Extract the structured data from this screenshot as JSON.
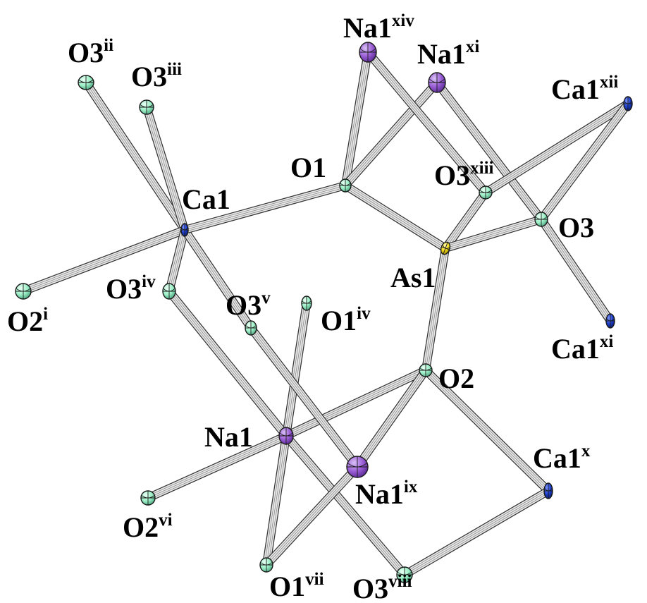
{
  "atom_colors": {
    "Na": "#9b5fd6",
    "Ca": "#1e3fd0",
    "O": "#9ef0c8",
    "As": "#f2dc1e"
  },
  "atoms": [
    {
      "id": "Ca1",
      "element": "Ca",
      "label": "Ca1",
      "sup": ""
    },
    {
      "id": "As1",
      "element": "As",
      "label": "As1",
      "sup": ""
    },
    {
      "id": "O1",
      "element": "O",
      "label": "O1",
      "sup": ""
    },
    {
      "id": "O2",
      "element": "O",
      "label": "O2",
      "sup": ""
    },
    {
      "id": "O3",
      "element": "O",
      "label": "O3",
      "sup": ""
    },
    {
      "id": "Na1",
      "element": "Na",
      "label": "Na1",
      "sup": ""
    },
    {
      "id": "O3ii",
      "element": "O",
      "label": "O3",
      "sup": "ii"
    },
    {
      "id": "O3iii",
      "element": "O",
      "label": "O3",
      "sup": "iii"
    },
    {
      "id": "O2i",
      "element": "O",
      "label": "O2",
      "sup": "i"
    },
    {
      "id": "O3iv",
      "element": "O",
      "label": "O3",
      "sup": "iv"
    },
    {
      "id": "O3v",
      "element": "O",
      "label": "O3",
      "sup": "v"
    },
    {
      "id": "O1iv",
      "element": "O",
      "label": "O1",
      "sup": "iv"
    },
    {
      "id": "Na1xiv",
      "element": "Na",
      "label": "Na1",
      "sup": "xiv"
    },
    {
      "id": "Na1xi",
      "element": "Na",
      "label": "Na1",
      "sup": "xi"
    },
    {
      "id": "Ca1xii",
      "element": "Ca",
      "label": "Ca1",
      "sup": "xii"
    },
    {
      "id": "O3xiii",
      "element": "O",
      "label": "O3",
      "sup": "xiii"
    },
    {
      "id": "Ca1xi",
      "element": "Ca",
      "label": "Ca1",
      "sup": "xi"
    },
    {
      "id": "Ca1x",
      "element": "Ca",
      "label": "Ca1",
      "sup": "x"
    },
    {
      "id": "Na1ix",
      "element": "Na",
      "label": "Na1",
      "sup": "ix"
    },
    {
      "id": "O2vi",
      "element": "O",
      "label": "O2",
      "sup": "vi"
    },
    {
      "id": "O1vii",
      "element": "O",
      "label": "O1",
      "sup": "vii"
    },
    {
      "id": "O3viii",
      "element": "O",
      "label": "O3",
      "sup": "viii"
    }
  ],
  "bonds": [
    [
      "Ca1",
      "O3ii"
    ],
    [
      "Ca1",
      "O3iii"
    ],
    [
      "Ca1",
      "O2i"
    ],
    [
      "Ca1",
      "O3iv"
    ],
    [
      "Ca1",
      "O3v"
    ],
    [
      "Ca1",
      "O1"
    ],
    [
      "O1",
      "Na1xiv"
    ],
    [
      "O1",
      "Na1xi"
    ],
    [
      "O1",
      "As1"
    ],
    [
      "As1",
      "O3xiii"
    ],
    [
      "As1",
      "O3"
    ],
    [
      "As1",
      "O2"
    ],
    [
      "Na1xiv",
      "O3xiii"
    ],
    [
      "Na1xi",
      "O3"
    ],
    [
      "Ca1xii",
      "O3xiii"
    ],
    [
      "Ca1xii",
      "O3"
    ],
    [
      "O3",
      "Ca1xi"
    ],
    [
      "O2",
      "Na1"
    ],
    [
      "O2",
      "Na1ix"
    ],
    [
      "O2",
      "Ca1x"
    ],
    [
      "Na1",
      "O1iv"
    ],
    [
      "Na1",
      "O2vi"
    ],
    [
      "Na1",
      "O1vii"
    ],
    [
      "Na1",
      "O3viii"
    ],
    [
      "O3iv",
      "Na1"
    ],
    [
      "O3v",
      "Na1ix"
    ],
    [
      "Na1ix",
      "O1vii"
    ],
    [
      "O3viii",
      "Ca1x"
    ]
  ]
}
